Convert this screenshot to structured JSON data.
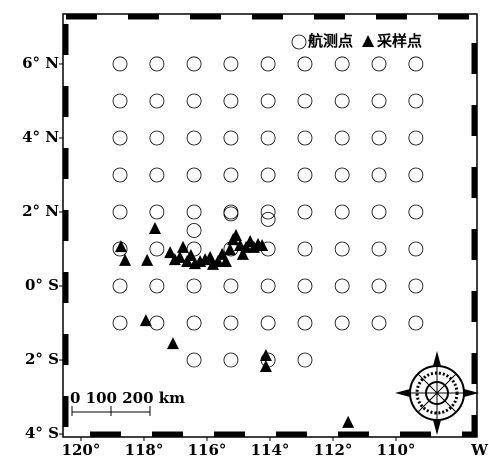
{
  "chart_data": {
    "type": "scatter",
    "xlim": [
      120.57,
      107.43
    ],
    "ylim": [
      -4.08,
      7.35
    ],
    "xticks": [
      {
        "value": 120,
        "label": "120°"
      },
      {
        "value": 118,
        "label": "118°"
      },
      {
        "value": 116,
        "label": "116°"
      },
      {
        "value": 114,
        "label": "114°"
      },
      {
        "value": 112,
        "label": "112°"
      },
      {
        "value": 110,
        "label": "110°"
      }
    ],
    "xtick_suffix": "W",
    "yticks": [
      {
        "value": 6,
        "label": "6° N"
      },
      {
        "value": 4,
        "label": "4° N"
      },
      {
        "value": 2,
        "label": "2° N"
      },
      {
        "value": 0,
        "label": "0° S"
      },
      {
        "value": -2,
        "label": "2° S"
      },
      {
        "value": -4,
        "label": "4° S"
      }
    ],
    "legend": "top-right",
    "scale_bar": "0 100 200 km",
    "series": [
      {
        "name": "航测点",
        "marker": "circle",
        "color": "#000000",
        "x": [
          118.76,
          117.59,
          116.41,
          115.24,
          114.06,
          112.89,
          111.71,
          110.54,
          109.37,
          118.76,
          117.59,
          116.41,
          115.24,
          114.06,
          112.89,
          111.71,
          110.54,
          109.37,
          118.76,
          117.59,
          116.41,
          115.24,
          114.06,
          112.89,
          111.71,
          110.54,
          109.37,
          118.76,
          117.59,
          116.41,
          115.24,
          114.06,
          112.89,
          111.71,
          110.54,
          109.37,
          118.76,
          117.59,
          116.41,
          115.24,
          114.06,
          112.89,
          111.71,
          110.54,
          109.37,
          118.76,
          117.59,
          116.41,
          115.24,
          114.06,
          112.89,
          111.71,
          110.54,
          109.37,
          118.76,
          117.59,
          116.41,
          115.24,
          114.06,
          112.89,
          111.71,
          110.54,
          109.37,
          118.76,
          117.59,
          116.41,
          115.24,
          114.06,
          112.89,
          111.71,
          110.54,
          109.37,
          116.41,
          115.24,
          114.06,
          112.89,
          116.41,
          115.24,
          114.06
        ],
        "y": [
          6,
          6,
          6,
          6,
          6,
          6,
          6,
          6,
          6,
          5,
          5,
          5,
          5,
          5,
          5,
          5,
          5,
          5,
          4,
          4,
          4,
          4,
          4,
          4,
          4,
          4,
          4,
          3,
          3,
          3,
          3,
          3,
          3,
          3,
          3,
          3,
          2,
          2,
          2,
          2,
          2,
          2,
          2,
          2,
          2,
          1,
          1,
          1,
          1,
          1,
          1,
          1,
          1,
          1,
          0,
          0,
          0,
          0,
          0,
          0,
          0,
          0,
          0,
          -1,
          -1,
          -1,
          -1,
          -1,
          -1,
          -1,
          -1,
          -1,
          -2,
          -2,
          -2,
          -2,
          1.5,
          1.95,
          1.8
        ]
      },
      {
        "name": "采样点",
        "marker": "triangle",
        "color": "#000000",
        "x": [
          118.73,
          118.6,
          117.9,
          117.65,
          117.94,
          117.08,
          117.17,
          117.02,
          116.86,
          116.76,
          116.63,
          116.51,
          116.38,
          116.22,
          116.06,
          115.9,
          115.81,
          115.65,
          115.52,
          115.4,
          115.27,
          115.17,
          115.08,
          114.95,
          114.86,
          114.76,
          114.63,
          114.51,
          114.38,
          114.25,
          114.13,
          114.13,
          111.52
        ],
        "y": [
          1.05,
          0.68,
          0.68,
          1.54,
          -0.95,
          -1.57,
          0.89,
          0.7,
          0.76,
          1.03,
          0.65,
          0.81,
          0.59,
          0.65,
          0.7,
          0.76,
          0.57,
          0.65,
          0.84,
          0.65,
          0.97,
          1.24,
          1.35,
          1.08,
          0.84,
          1.03,
          1.19,
          1.03,
          1.11,
          1.08,
          -1.89,
          -2.19,
          -3.7
        ]
      }
    ]
  }
}
